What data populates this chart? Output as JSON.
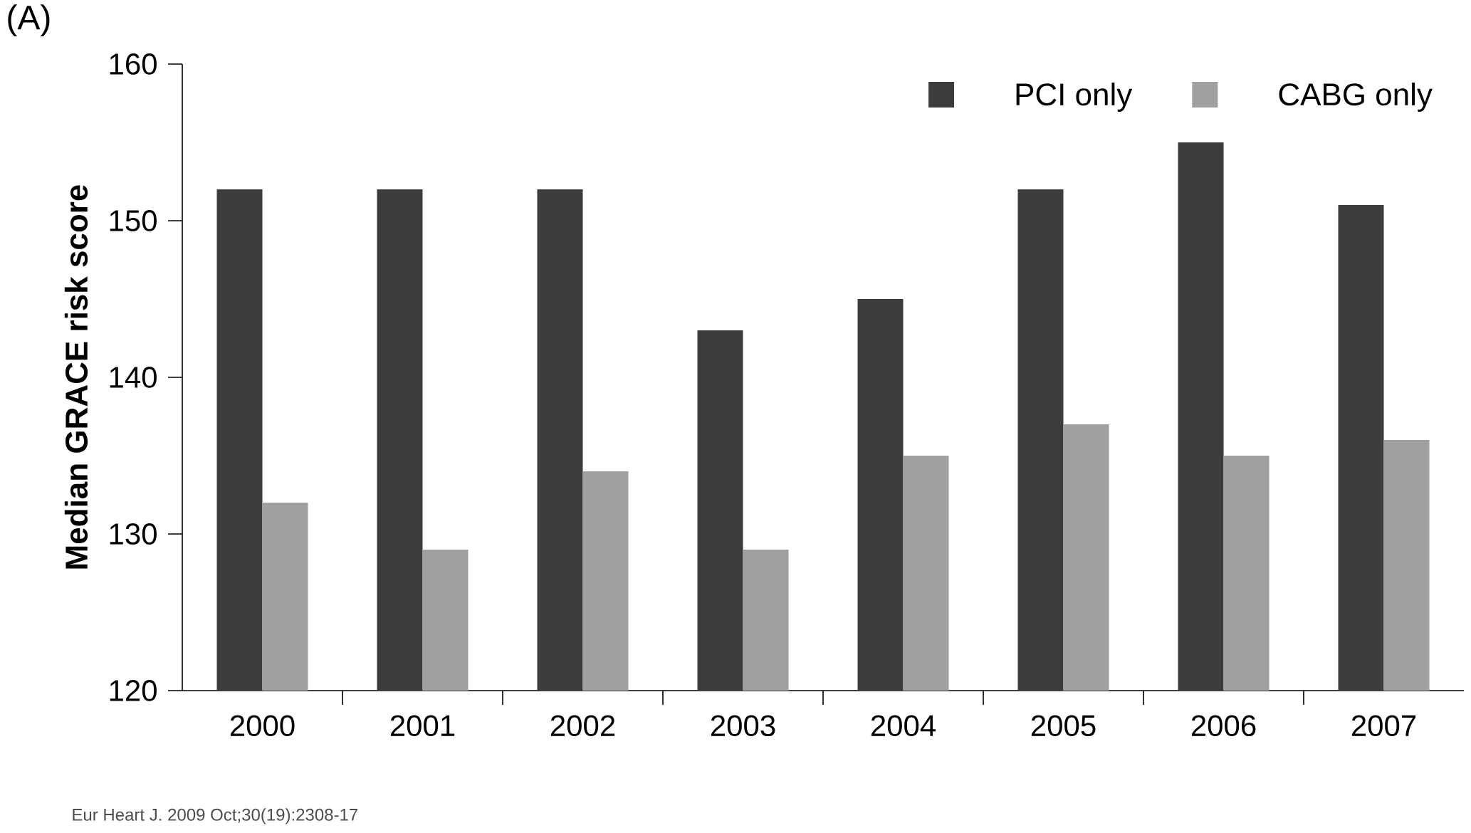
{
  "chart_data": {
    "type": "bar",
    "ylabel": "Median GRACE risk score",
    "categories": [
      "2000",
      "2001",
      "2002",
      "2003",
      "2004",
      "2005",
      "2006",
      "2007"
    ],
    "series": [
      {
        "name": "PCI only",
        "color": "#3c3c3c",
        "values": [
          152,
          152,
          152,
          143,
          145,
          152,
          155,
          151
        ]
      },
      {
        "name": "CABG only",
        "color": "#a0a0a0",
        "values": [
          132,
          129,
          134,
          129,
          135,
          137,
          135,
          136
        ]
      }
    ],
    "ylim": [
      120,
      160
    ],
    "yticks": [
      120,
      130,
      140,
      150,
      160
    ],
    "legend": "top right",
    "annotations": [
      "(A)",
      "Eur Heart J. 2009 Oct;30(19):2308-17"
    ]
  }
}
